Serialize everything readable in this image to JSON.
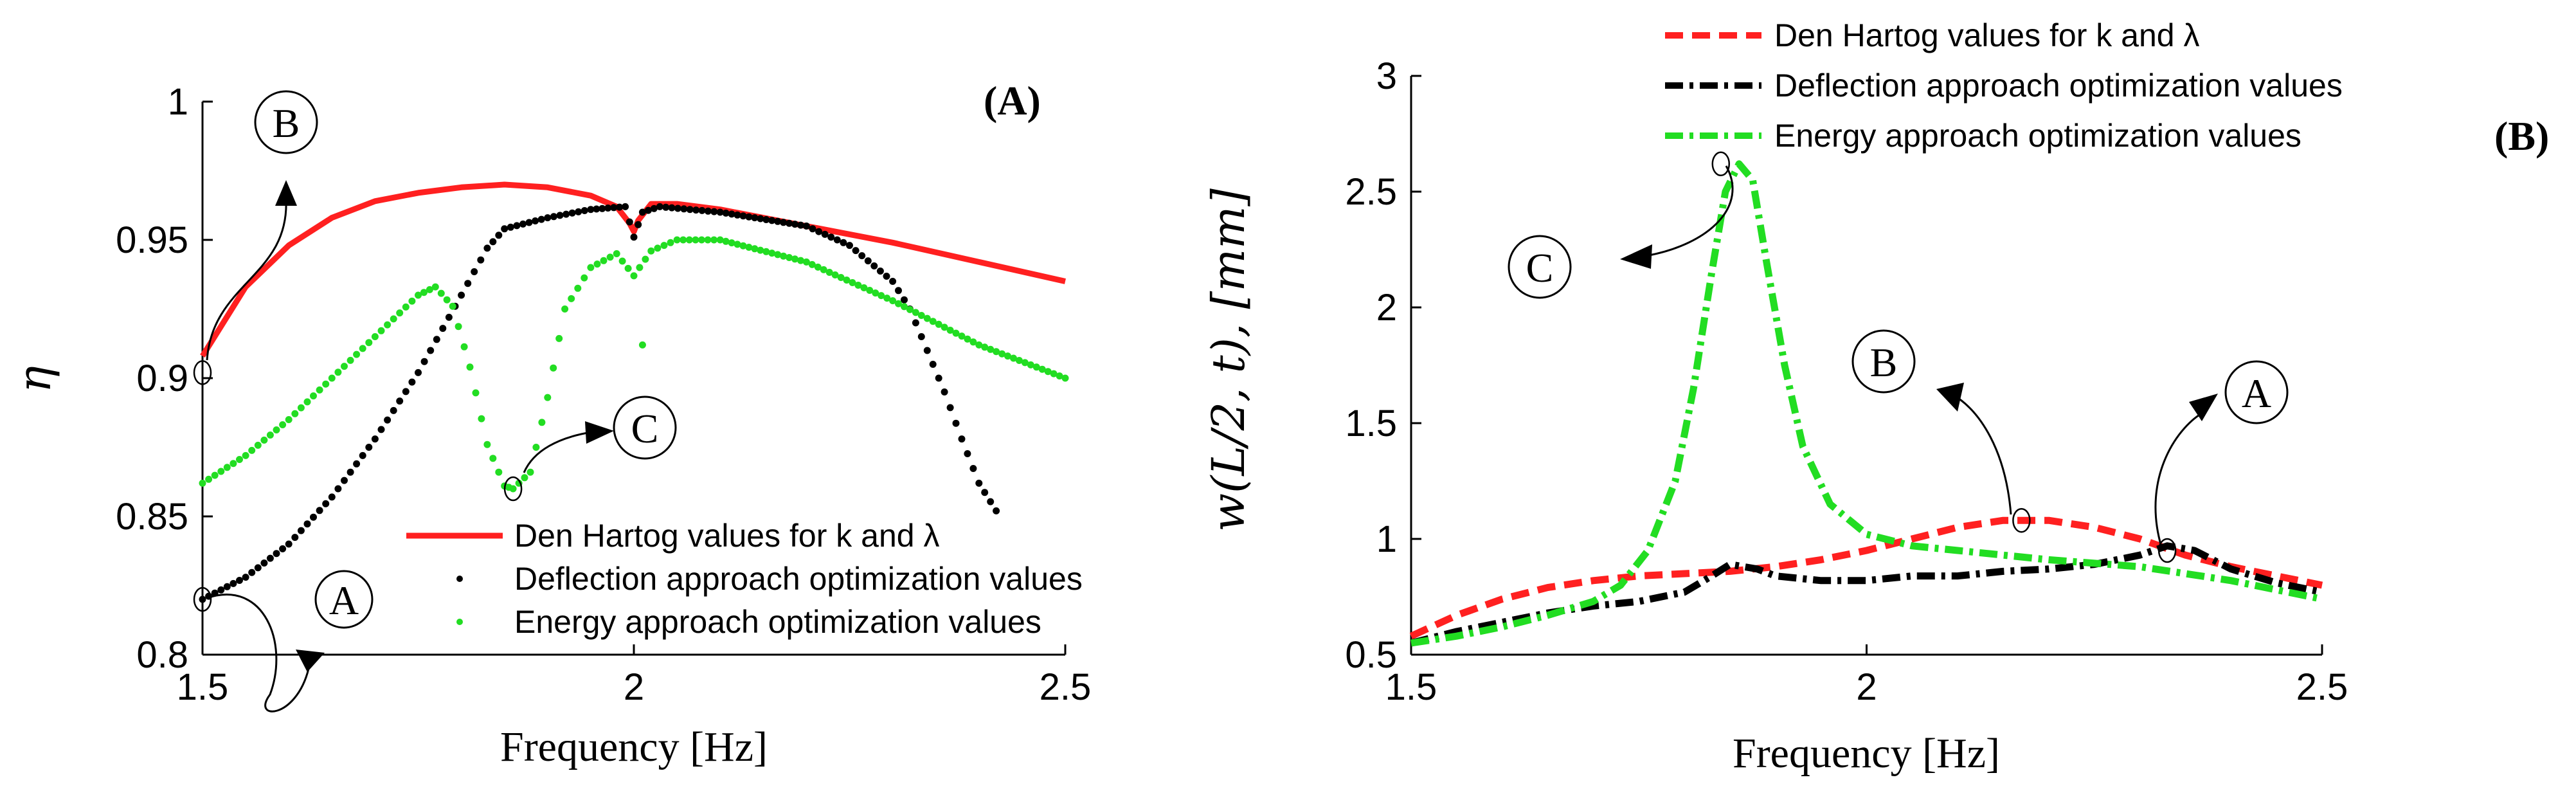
{
  "chart_data": [
    {
      "type": "line",
      "panel_label": "(A)",
      "xlabel": "Frequency [Hz]",
      "ylabel": "η",
      "xlim": [
        1.5,
        2.5
      ],
      "ylim": [
        0.8,
        1.0
      ],
      "xticks": [
        "1.5",
        "2",
        "2.5"
      ],
      "yticks": [
        "0.8",
        "0.85",
        "0.9",
        "0.95",
        "1"
      ],
      "legend_position": "bottom-right",
      "series": [
        {
          "name": "Den Hartog values for k and λ",
          "style": "line",
          "color": "#ff2020",
          "x": [
            1.5,
            1.55,
            1.6,
            1.65,
            1.7,
            1.75,
            1.8,
            1.85,
            1.9,
            1.95,
            1.98,
            1.995,
            2.0,
            2.005,
            2.02,
            2.05,
            2.1,
            2.2,
            2.3,
            2.4,
            2.5
          ],
          "y": [
            0.908,
            0.933,
            0.948,
            0.958,
            0.964,
            0.967,
            0.969,
            0.97,
            0.969,
            0.966,
            0.962,
            0.956,
            0.953,
            0.957,
            0.963,
            0.963,
            0.961,
            0.955,
            0.949,
            0.942,
            0.935
          ]
        },
        {
          "name": "Deflection approach optimization values",
          "style": "dots",
          "color": "#000000",
          "x": [
            1.5,
            1.55,
            1.6,
            1.65,
            1.7,
            1.75,
            1.8,
            1.83,
            1.85,
            1.9,
            1.95,
            1.99,
            2.0,
            2.01,
            2.03,
            2.1,
            2.2,
            2.25,
            2.3,
            2.32,
            2.34,
            2.36,
            2.38,
            2.4,
            2.42
          ],
          "y": [
            0.82,
            0.828,
            0.84,
            0.857,
            0.878,
            0.902,
            0.93,
            0.947,
            0.954,
            0.958,
            0.961,
            0.962,
            0.951,
            0.96,
            0.962,
            0.96,
            0.955,
            0.948,
            0.935,
            0.925,
            0.91,
            0.895,
            0.878,
            0.862,
            0.852
          ]
        },
        {
          "name": "Energy approach optimization values",
          "style": "dots",
          "color": "#22dd22",
          "x": [
            1.5,
            1.55,
            1.6,
            1.65,
            1.7,
            1.75,
            1.77,
            1.79,
            1.81,
            1.83,
            1.85,
            1.86,
            1.88,
            1.9,
            1.92,
            1.95,
            1.98,
            2.0,
            2.02,
            2.05,
            2.1,
            2.2,
            2.3,
            2.4,
            2.5
          ],
          "y": [
            0.862,
            0.872,
            0.885,
            0.9,
            0.915,
            0.93,
            0.933,
            0.926,
            0.904,
            0.876,
            0.861,
            0.86,
            0.866,
            0.893,
            0.925,
            0.94,
            0.945,
            0.937,
            0.946,
            0.95,
            0.95,
            0.942,
            0.928,
            0.912,
            0.9
          ]
        }
      ],
      "extra_points": [
        {
          "x": 2.01,
          "y": 0.912,
          "color": "#22dd22"
        }
      ],
      "callouts": [
        {
          "label": "A",
          "target_x": 1.5,
          "target_y": 0.82
        },
        {
          "label": "B",
          "target_x": 1.5,
          "target_y": 0.902
        },
        {
          "label": "C",
          "target_x": 1.86,
          "target_y": 0.86
        }
      ]
    },
    {
      "type": "line",
      "panel_label": "(B)",
      "xlabel": "Frequency [Hz]",
      "ylabel": "w(L/2, t), [mm]",
      "xlim": [
        1.5,
        2.5
      ],
      "ylim": [
        0.5,
        3.0
      ],
      "xticks": [
        "1.5",
        "2",
        "2.5"
      ],
      "yticks": [
        "0.5",
        "1",
        "1.5",
        "2",
        "2.5",
        "3"
      ],
      "legend_position": "top",
      "series": [
        {
          "name": "Den Hartog values for k and λ",
          "style": "dashed",
          "color": "#ff2020",
          "x": [
            1.5,
            1.55,
            1.6,
            1.65,
            1.7,
            1.75,
            1.8,
            1.85,
            1.9,
            1.95,
            2.0,
            2.05,
            2.1,
            2.15,
            2.2,
            2.25,
            2.3,
            2.35,
            2.4,
            2.45,
            2.5
          ],
          "y": [
            0.58,
            0.67,
            0.74,
            0.79,
            0.82,
            0.84,
            0.85,
            0.86,
            0.88,
            0.91,
            0.95,
            1.0,
            1.05,
            1.08,
            1.08,
            1.05,
            1.0,
            0.93,
            0.88,
            0.84,
            0.8
          ]
        },
        {
          "name": "Deflection approach optimization values",
          "style": "dashdot",
          "color": "#000000",
          "x": [
            1.5,
            1.55,
            1.6,
            1.65,
            1.7,
            1.75,
            1.8,
            1.83,
            1.85,
            1.88,
            1.9,
            1.95,
            2.0,
            2.05,
            2.1,
            2.15,
            2.2,
            2.25,
            2.3,
            2.33,
            2.36,
            2.4,
            2.45,
            2.5
          ],
          "y": [
            0.55,
            0.6,
            0.64,
            0.68,
            0.71,
            0.73,
            0.77,
            0.84,
            0.89,
            0.87,
            0.84,
            0.82,
            0.82,
            0.84,
            0.84,
            0.86,
            0.87,
            0.89,
            0.93,
            0.97,
            0.95,
            0.87,
            0.81,
            0.77
          ]
        },
        {
          "name": "Energy approach optimization values",
          "style": "dashdot",
          "color": "#22dd22",
          "x": [
            1.5,
            1.55,
            1.6,
            1.65,
            1.7,
            1.73,
            1.76,
            1.79,
            1.81,
            1.83,
            1.845,
            1.86,
            1.875,
            1.89,
            1.91,
            1.93,
            1.96,
            2.0,
            2.05,
            2.1,
            2.15,
            2.2,
            2.3,
            2.4,
            2.5
          ],
          "y": [
            0.55,
            0.58,
            0.62,
            0.67,
            0.73,
            0.8,
            0.95,
            1.25,
            1.65,
            2.15,
            2.5,
            2.62,
            2.55,
            2.2,
            1.75,
            1.4,
            1.15,
            1.02,
            0.97,
            0.95,
            0.93,
            0.91,
            0.88,
            0.82,
            0.74
          ]
        }
      ],
      "callouts": [
        {
          "label": "A",
          "target_x": 2.33,
          "target_y": 0.95
        },
        {
          "label": "B",
          "target_x": 2.17,
          "target_y": 1.08
        },
        {
          "label": "C",
          "target_x": 1.84,
          "target_y": 2.62
        }
      ]
    }
  ]
}
